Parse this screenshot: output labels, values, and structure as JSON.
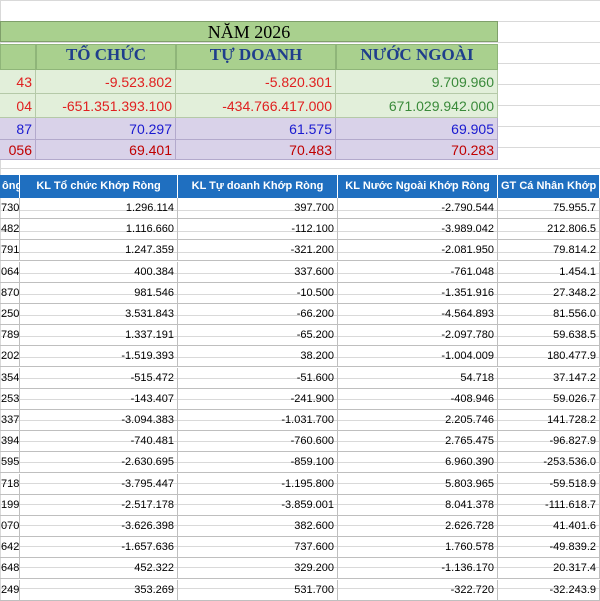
{
  "title": "NĂM 2026",
  "headers": [
    "TỔ CHỨC",
    "TỰ DOANH",
    "NƯỚC NGOÀI"
  ],
  "summary": [
    {
      "first": "43",
      "vals": [
        "-9.523.802",
        "-5.820.301",
        "9.709.960"
      ]
    },
    {
      "first": "04",
      "vals": [
        "-651.351.393.100",
        "-434.766.417.000",
        "671.029.942.000"
      ]
    },
    {
      "first": "87",
      "vals": [
        "70.297",
        "61.575",
        "69.905"
      ]
    },
    {
      "first": "056",
      "vals": [
        "69.401",
        "70.483",
        "70.283"
      ]
    }
  ],
  "columns": [
    "ông",
    "KL Tổ chức Khớp Ròng",
    "KL Tự doanh Khớp Ròng",
    "KL Nước Ngoài Khớp Ròng",
    "GT Cá Nhân Khớp"
  ],
  "rows": [
    [
      "730",
      "1.296.114",
      "397.700",
      "-2.790.544",
      "75.955.7"
    ],
    [
      "482",
      "1.116.660",
      "-112.100",
      "-3.989.042",
      "212.806.5"
    ],
    [
      "791",
      "1.247.359",
      "-321.200",
      "-2.081.950",
      "79.814.2"
    ],
    [
      "064",
      "400.384",
      "337.600",
      "-761.048",
      "1.454.1"
    ],
    [
      "870",
      "981.546",
      "-10.500",
      "-1.351.916",
      "27.348.2"
    ],
    [
      "250",
      "3.531.843",
      "-66.200",
      "-4.564.893",
      "81.556.0"
    ],
    [
      "789",
      "1.337.191",
      "-65.200",
      "-2.097.780",
      "59.638.5"
    ],
    [
      "202",
      "-1.519.393",
      "38.200",
      "-1.004.009",
      "180.477.9"
    ],
    [
      "354",
      "-515.472",
      "-51.600",
      "54.718",
      "37.147.2"
    ],
    [
      "253",
      "-143.407",
      "-241.900",
      "-408.946",
      "59.026.7"
    ],
    [
      "337",
      "-3.094.383",
      "-1.031.700",
      "2.205.746",
      "141.728.2"
    ],
    [
      "394",
      "-740.481",
      "-760.600",
      "2.765.475",
      "-96.827.9"
    ],
    [
      "595",
      "-2.630.695",
      "-859.100",
      "6.960.390",
      "-253.536.0"
    ],
    [
      "718",
      "-3.795.447",
      "-1.195.800",
      "5.803.965",
      "-59.518.9"
    ],
    [
      "199",
      "-2.517.178",
      "-3.859.001",
      "8.041.378",
      "-111.618.7"
    ],
    [
      "070",
      "-3.626.398",
      "382.600",
      "2.626.728",
      "41.401.6"
    ],
    [
      "642",
      "-1.657.636",
      "737.600",
      "1.760.578",
      "-49.839.2"
    ],
    [
      "648",
      "452.322",
      "329.200",
      "-1.136.170",
      "20.317.4"
    ],
    [
      "249",
      "353.269",
      "531.700",
      "-322.720",
      "-32.243.9"
    ]
  ]
}
